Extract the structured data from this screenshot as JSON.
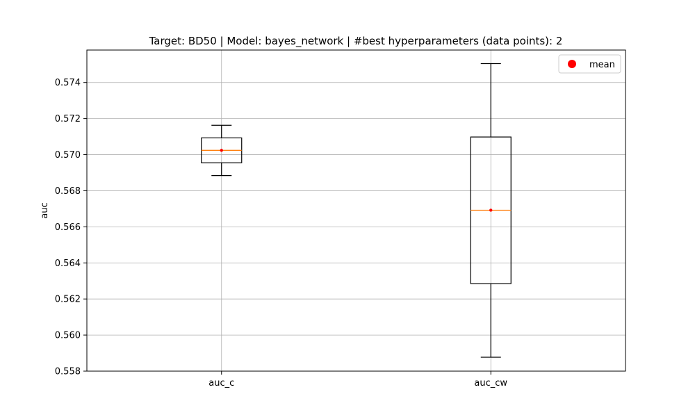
{
  "chart_data": {
    "type": "box",
    "title": "Target: BD50 | Model: bayes_network | #best hyperparameters (data points): 2",
    "xlabel": "",
    "ylabel": "auc",
    "ylim": [
      0.558,
      0.5758
    ],
    "yticks": [
      0.558,
      0.56,
      0.562,
      0.564,
      0.566,
      0.568,
      0.57,
      0.572,
      0.574
    ],
    "ytick_labels": [
      "0.558",
      "0.560",
      "0.562",
      "0.564",
      "0.566",
      "0.568",
      "0.570",
      "0.572",
      "0.574"
    ],
    "grid": true,
    "legend": {
      "position": "top-right",
      "entries": [
        {
          "label": "mean",
          "marker": "circle",
          "color": "#ff0000"
        }
      ]
    },
    "categories": [
      "auc_c",
      "auc_cw"
    ],
    "boxes": [
      {
        "name": "auc_c",
        "whisker_low": 0.56884,
        "q1": 0.56955,
        "median": 0.57024,
        "q3": 0.57093,
        "whisker_high": 0.57163,
        "mean": 0.57024
      },
      {
        "name": "auc_cw",
        "whisker_low": 0.55877,
        "q1": 0.56285,
        "median": 0.56692,
        "q3": 0.57098,
        "whisker_high": 0.57505,
        "mean": 0.56692
      }
    ],
    "colors": {
      "box": "#000000",
      "median": "#ff7f0e",
      "mean": "#ff0000",
      "grid": "#b0b0b0"
    }
  }
}
